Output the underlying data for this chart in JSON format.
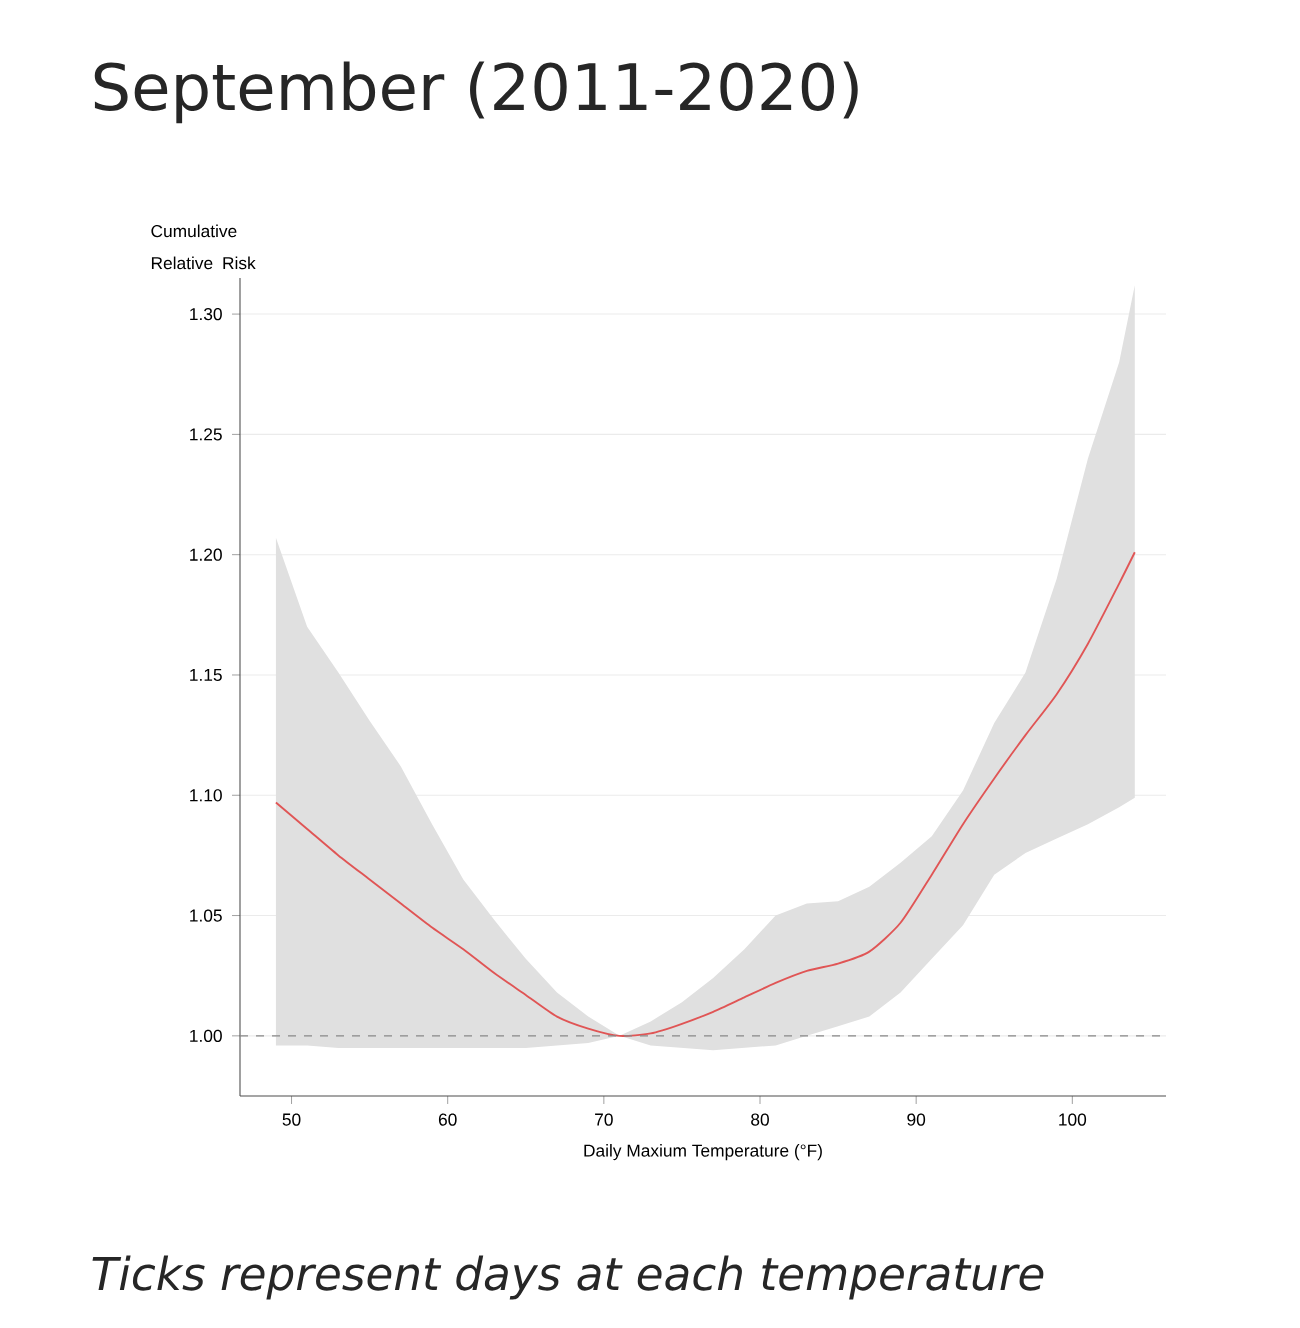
{
  "chart_data": {
    "type": "line",
    "title": "September (2011-2020)",
    "xlabel": "Daily Maxium Temperature (°F)",
    "ylabel": "Cumulative Relative Risk",
    "annotations": [
      "Ticks represent days at each temperature"
    ],
    "xlim": [
      46.7,
      106
    ],
    "ylim": [
      0.975,
      1.315
    ],
    "xticks": [
      50,
      60,
      70,
      80,
      90,
      100
    ],
    "yticks": [
      {
        "value": 1.0,
        "label": "1.00"
      },
      {
        "value": 1.05,
        "label": "1.05"
      },
      {
        "value": 1.1,
        "label": "1.10"
      },
      {
        "value": 1.15,
        "label": "1.15"
      },
      {
        "value": 1.2,
        "label": "1.20"
      },
      {
        "value": 1.25,
        "label": "1.25"
      },
      {
        "value": 1.3,
        "label": "1.30"
      }
    ],
    "grid": "y",
    "marker": "none",
    "line_style": "solid",
    "ref_lines": [
      {
        "axis": "y",
        "value": 1.0,
        "color": "#888888",
        "line_style": "dashed"
      }
    ],
    "series": [
      {
        "color": "#e05555",
        "x": [
          49,
          51,
          53,
          55,
          57,
          59,
          61,
          63,
          65,
          67,
          69,
          71,
          73,
          75,
          77,
          79,
          81,
          83,
          85,
          87,
          89,
          91,
          93,
          95,
          97,
          99,
          101,
          103,
          104
        ],
        "values": [
          1.097,
          1.086,
          1.075,
          1.065,
          1.055,
          1.045,
          1.036,
          1.026,
          1.017,
          1.008,
          1.003,
          1.0,
          1.001,
          1.005,
          1.01,
          1.016,
          1.022,
          1.027,
          1.03,
          1.035,
          1.047,
          1.067,
          1.088,
          1.107,
          1.125,
          1.142,
          1.163,
          1.188,
          1.201
        ],
        "upper": [
          1.207,
          1.17,
          1.151,
          1.131,
          1.112,
          1.088,
          1.065,
          1.048,
          1.032,
          1.018,
          1.008,
          1.0,
          1.006,
          1.014,
          1.024,
          1.036,
          1.05,
          1.055,
          1.056,
          1.062,
          1.072,
          1.083,
          1.102,
          1.13,
          1.151,
          1.19,
          1.24,
          1.28,
          1.312
        ],
        "lower": [
          0.996,
          0.996,
          0.995,
          0.995,
          0.995,
          0.995,
          0.995,
          0.995,
          0.995,
          0.996,
          0.997,
          1.0,
          0.996,
          0.995,
          0.994,
          0.995,
          0.996,
          1.0,
          1.004,
          1.008,
          1.018,
          1.032,
          1.046,
          1.067,
          1.076,
          1.082,
          1.088,
          1.095,
          1.099
        ]
      }
    ]
  }
}
